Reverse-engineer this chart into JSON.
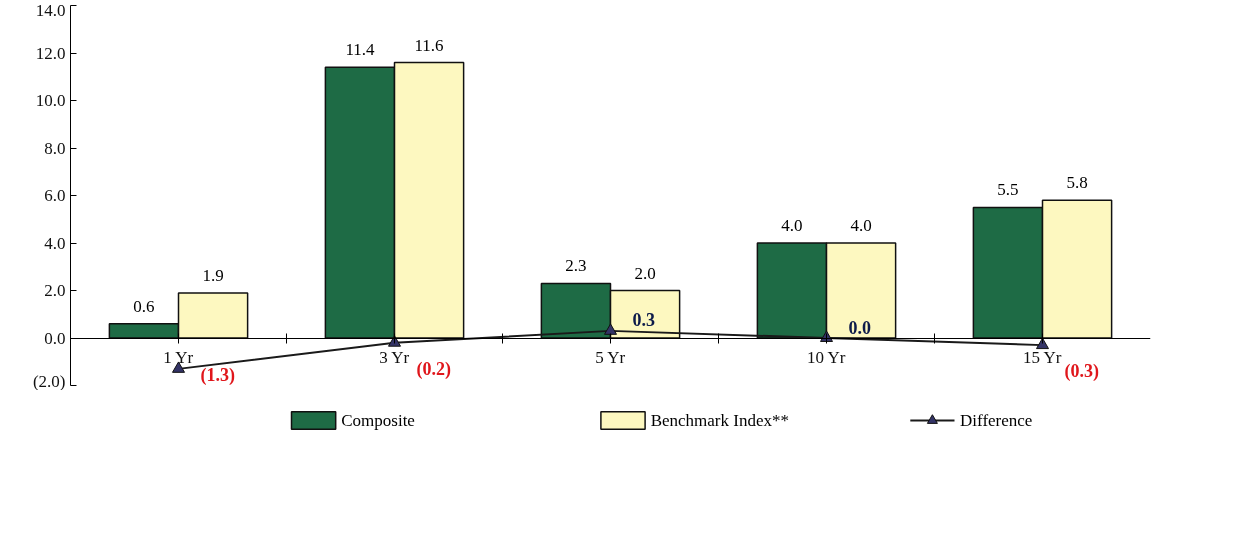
{
  "chart_data": {
    "type": "bar",
    "categories": [
      "1 Yr",
      "3 Yr",
      "5 Yr",
      "10 Yr",
      "15 Yr"
    ],
    "series": [
      {
        "name": "Composite",
        "color": "#1e6b45",
        "values": [
          0.6,
          11.4,
          2.3,
          4.0,
          5.5
        ],
        "value_labels": [
          "0.6",
          "11.4",
          "2.3",
          "4.0",
          "5.5"
        ]
      },
      {
        "name": "Benchmark Index**",
        "color": "#fdf8c0",
        "values": [
          1.9,
          11.6,
          2.0,
          4.0,
          5.8
        ],
        "value_labels": [
          "1.9",
          "11.6",
          "2.0",
          "4.0",
          "5.8"
        ]
      },
      {
        "name": "Difference",
        "type": "line",
        "color": "#1a1a1a",
        "marker": "triangle",
        "values": [
          -1.3,
          -0.2,
          0.3,
          0.0,
          -0.3
        ],
        "value_labels": [
          "(1.3)",
          "(0.2)",
          "0.3",
          "0.0",
          "(0.3)"
        ]
      }
    ],
    "ylim": [
      -2,
      14
    ],
    "yticks": [
      {
        "value": -2,
        "label": "(2.0)"
      },
      {
        "value": 0,
        "label": "0.0"
      },
      {
        "value": 2,
        "label": "2.0"
      },
      {
        "value": 4,
        "label": "4.0"
      },
      {
        "value": 6,
        "label": "6.0"
      },
      {
        "value": 8,
        "label": "8.0"
      },
      {
        "value": 10,
        "label": "10.0"
      },
      {
        "value": 12,
        "label": "12.0"
      },
      {
        "value": 14,
        "label": "14.0"
      }
    ],
    "grid": false,
    "legend": "bottom"
  }
}
